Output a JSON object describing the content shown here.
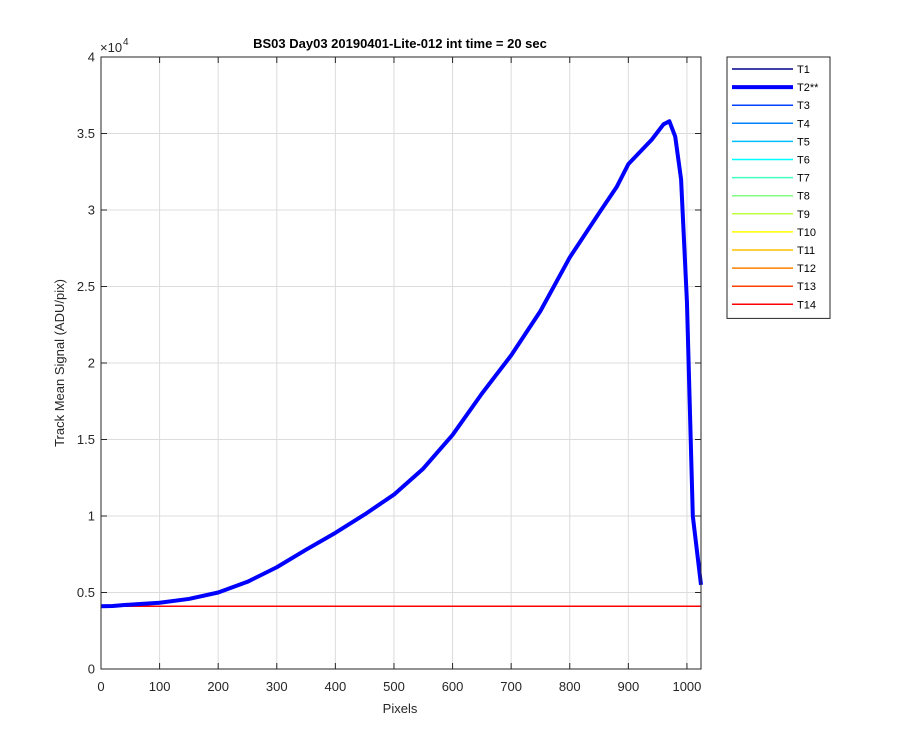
{
  "chart_data": {
    "type": "line",
    "title": "BS03 Day03 20190401-Lite-012 int time = 20 sec",
    "xlabel": "Pixels",
    "ylabel": "Track Mean Signal (ADU/pix)",
    "xlim": [
      0,
      1024
    ],
    "ylim": [
      0,
      40000
    ],
    "y_exponent_label": "×10",
    "y_exponent_power": "4",
    "x_ticks": [
      0,
      100,
      200,
      300,
      400,
      500,
      600,
      700,
      800,
      900,
      1000
    ],
    "x_tick_labels": [
      "0",
      "100",
      "200",
      "300",
      "400",
      "500",
      "600",
      "700",
      "800",
      "900",
      "1000"
    ],
    "y_ticks": [
      0,
      5000,
      10000,
      15000,
      20000,
      25000,
      30000,
      35000,
      40000
    ],
    "y_tick_labels": [
      "0",
      "0.5",
      "1",
      "1.5",
      "2",
      "2.5",
      "3",
      "3.5",
      "4"
    ],
    "grid": true,
    "legend_position": "outside-right",
    "flat_level": 4100,
    "series": [
      {
        "name": "T1",
        "color": "#00008f",
        "highlight": false
      },
      {
        "name": "T2**",
        "color": "#0000ff",
        "highlight": true,
        "x": [
          0,
          20,
          40,
          60,
          80,
          100,
          150,
          200,
          250,
          300,
          350,
          400,
          450,
          500,
          550,
          600,
          650,
          700,
          750,
          800,
          850,
          880,
          900,
          940,
          960,
          970,
          980,
          990,
          1000,
          1010,
          1024
        ],
        "y": [
          4100,
          4120,
          4180,
          4230,
          4280,
          4330,
          4580,
          5000,
          5700,
          6650,
          7800,
          8900,
          10100,
          11400,
          13100,
          15300,
          18000,
          20500,
          23400,
          26900,
          29800,
          31500,
          33000,
          34600,
          35600,
          35800,
          34800,
          32000,
          24000,
          10000,
          5500
        ]
      },
      {
        "name": "T3",
        "color": "#0040ff",
        "highlight": false
      },
      {
        "name": "T4",
        "color": "#0080ff",
        "highlight": false
      },
      {
        "name": "T5",
        "color": "#00bfff",
        "highlight": false
      },
      {
        "name": "T6",
        "color": "#00ffff",
        "highlight": false
      },
      {
        "name": "T7",
        "color": "#40ffbf",
        "highlight": false
      },
      {
        "name": "T8",
        "color": "#80ff80",
        "highlight": false
      },
      {
        "name": "T9",
        "color": "#bfff40",
        "highlight": false
      },
      {
        "name": "T10",
        "color": "#ffff00",
        "highlight": false
      },
      {
        "name": "T11",
        "color": "#ffbf00",
        "highlight": false
      },
      {
        "name": "T12",
        "color": "#ff8000",
        "highlight": false
      },
      {
        "name": "T13",
        "color": "#ff4000",
        "highlight": false
      },
      {
        "name": "T14",
        "color": "#ff0000",
        "highlight": false
      }
    ]
  }
}
